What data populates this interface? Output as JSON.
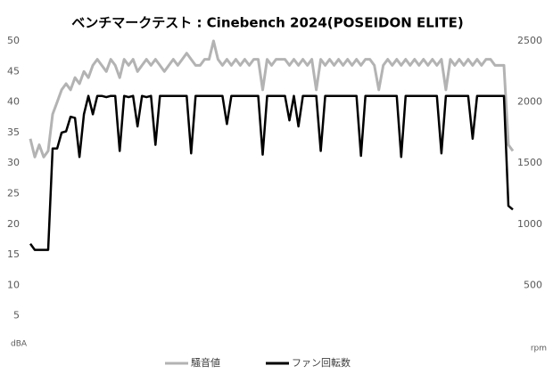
{
  "chart_data": {
    "type": "line",
    "title": "ベンチマークテスト : Cinebench 2024(POSEIDON ELITE)",
    "y_label": "dBA",
    "y2_label": "rpm",
    "ylim": [
      0,
      50
    ],
    "yticks": [
      5,
      10,
      15,
      20,
      25,
      30,
      35,
      40,
      45,
      50
    ],
    "y2lim": [
      0,
      2500
    ],
    "y2ticks": [
      500,
      1000,
      1500,
      2000,
      2500
    ],
    "legend": "bottom",
    "series": [
      {
        "name": "騒音値",
        "color": "#b3b3b3",
        "values": [
          34,
          31,
          33,
          31,
          32,
          38,
          40,
          42,
          43,
          42,
          44,
          43,
          45,
          44,
          46,
          47,
          46,
          45,
          47,
          46,
          44,
          47,
          46,
          47,
          45,
          46,
          47,
          46,
          47,
          46,
          45,
          46,
          47,
          46,
          47,
          48,
          47,
          46,
          46,
          47,
          47,
          50,
          47,
          46,
          47,
          46,
          47,
          46,
          47,
          46,
          47,
          47,
          42,
          47,
          46,
          47,
          47,
          47,
          46,
          47,
          46,
          47,
          46,
          47,
          42,
          47,
          46,
          47,
          46,
          47,
          46,
          47,
          46,
          47,
          46,
          47,
          47,
          46,
          42,
          46,
          47,
          46,
          47,
          46,
          47,
          46,
          47,
          46,
          47,
          46,
          47,
          46,
          47,
          42,
          47,
          46,
          47,
          46,
          47,
          46,
          47,
          46,
          47,
          47,
          46,
          46,
          46,
          33,
          32
        ]
      },
      {
        "name": "ファン回転数",
        "color": "#000000",
        "axis": "y2",
        "values": [
          840,
          790,
          790,
          790,
          790,
          1620,
          1620,
          1750,
          1760,
          1880,
          1870,
          1550,
          1900,
          2050,
          1900,
          2050,
          2050,
          2040,
          2050,
          2050,
          1600,
          2050,
          2040,
          2050,
          1800,
          2050,
          2040,
          2050,
          1650,
          2050,
          2050,
          2050,
          2050,
          2050,
          2050,
          2050,
          1580,
          2050,
          2050,
          2050,
          2050,
          2050,
          2050,
          2050,
          1820,
          2050,
          2050,
          2050,
          2050,
          2050,
          2050,
          2050,
          1570,
          2050,
          2050,
          2050,
          2050,
          2050,
          1850,
          2050,
          1800,
          2050,
          2050,
          2050,
          2050,
          1600,
          2050,
          2050,
          2050,
          2050,
          2050,
          2050,
          2050,
          2050,
          1560,
          2050,
          2050,
          2050,
          2050,
          2050,
          2050,
          2050,
          2050,
          1550,
          2050,
          2050,
          2050,
          2050,
          2050,
          2050,
          2050,
          2050,
          1580,
          2050,
          2050,
          2050,
          2050,
          2050,
          2050,
          1700,
          2050,
          2050,
          2050,
          2050,
          2050,
          2050,
          2050,
          1150,
          1120
        ]
      }
    ]
  }
}
